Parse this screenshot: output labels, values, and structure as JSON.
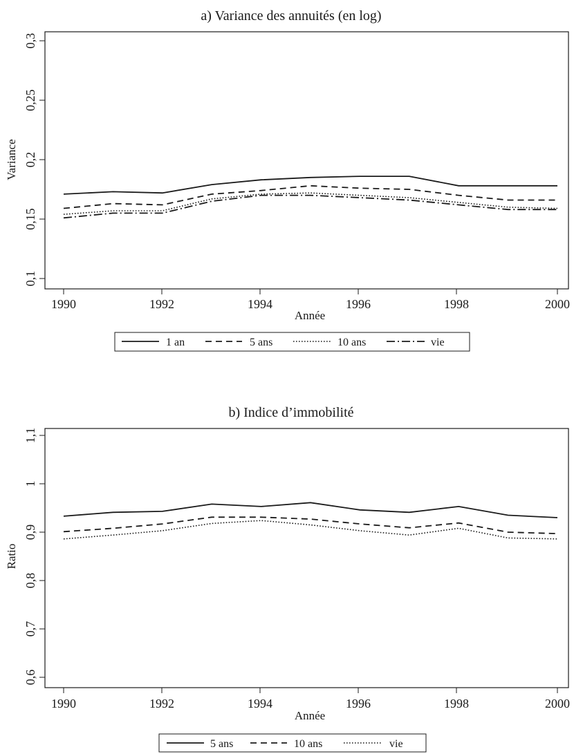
{
  "chart_data": [
    {
      "type": "line",
      "title": "a) Variance des annuités (en log)",
      "xlabel": "Année",
      "ylabel": "Variance",
      "xlim": [
        1990,
        2000
      ],
      "ylim": [
        0.1,
        0.3
      ],
      "x_ticks": [
        "1990",
        "1992",
        "1994",
        "1996",
        "1998",
        "2000"
      ],
      "y_ticks": [
        "0,1",
        "0,15",
        "0,2",
        "0,25",
        "0,3"
      ],
      "grid": false,
      "legend_position": "bottom",
      "x": [
        1990,
        1991,
        1992,
        1993,
        1994,
        1995,
        1996,
        1997,
        1998,
        1999,
        2000
      ],
      "series": [
        {
          "name": "1 an",
          "style": "solid",
          "values": [
            0.171,
            0.173,
            0.172,
            0.179,
            0.183,
            0.185,
            0.186,
            0.186,
            0.178,
            0.178,
            0.178
          ]
        },
        {
          "name": "5 ans",
          "style": "dash",
          "values": [
            0.159,
            0.163,
            0.162,
            0.171,
            0.174,
            0.178,
            0.176,
            0.175,
            0.17,
            0.166,
            0.166
          ]
        },
        {
          "name": "10 ans",
          "style": "dot",
          "values": [
            0.154,
            0.157,
            0.157,
            0.167,
            0.171,
            0.172,
            0.17,
            0.168,
            0.164,
            0.16,
            0.159
          ]
        },
        {
          "name": "vie",
          "style": "dashdot",
          "values": [
            0.151,
            0.155,
            0.155,
            0.165,
            0.17,
            0.17,
            0.168,
            0.166,
            0.162,
            0.158,
            0.158
          ]
        }
      ]
    },
    {
      "type": "line",
      "title": "b) Indice d’immobilité",
      "xlabel": "Année",
      "ylabel": "Ratio",
      "xlim": [
        1990,
        2000
      ],
      "ylim": [
        0.6,
        1.1
      ],
      "x_ticks": [
        "1990",
        "1992",
        "1994",
        "1996",
        "1998",
        "2000"
      ],
      "y_ticks": [
        "0,6",
        "0,7",
        "0,8",
        "0,9",
        "1",
        "1,1"
      ],
      "grid": false,
      "legend_position": "bottom",
      "x": [
        1990,
        1991,
        1992,
        1993,
        1994,
        1995,
        1996,
        1997,
        1998,
        1999,
        2000
      ],
      "series": [
        {
          "name": "5 ans",
          "style": "solid",
          "values": [
            0.933,
            0.941,
            0.943,
            0.958,
            0.953,
            0.961,
            0.946,
            0.941,
            0.953,
            0.935,
            0.93
          ]
        },
        {
          "name": "10 ans",
          "style": "dash",
          "values": [
            0.901,
            0.908,
            0.917,
            0.931,
            0.931,
            0.927,
            0.917,
            0.909,
            0.919,
            0.9,
            0.897
          ]
        },
        {
          "name": "vie",
          "style": "dot",
          "values": [
            0.886,
            0.894,
            0.903,
            0.918,
            0.924,
            0.915,
            0.903,
            0.894,
            0.908,
            0.888,
            0.886
          ]
        }
      ]
    }
  ]
}
